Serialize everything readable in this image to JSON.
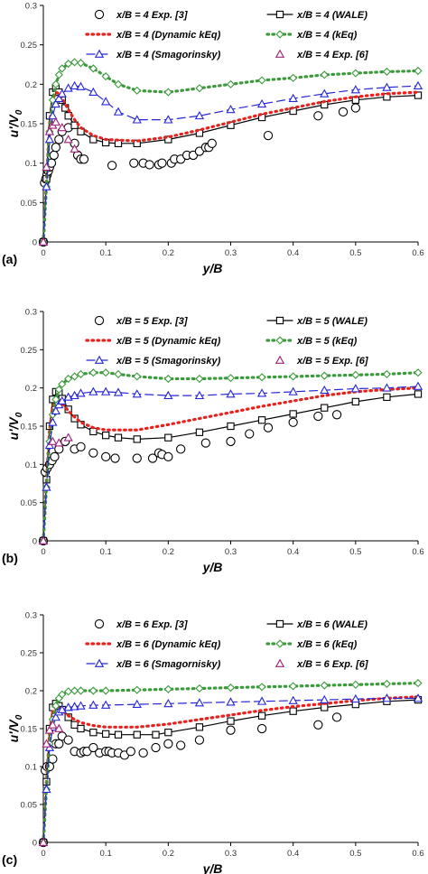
{
  "charts": [
    {
      "panel_label": "(a)",
      "xlabel": "y/B",
      "ylabel": "u'/V",
      "ylabel_sub": "0",
      "x_ticks": [
        "0",
        "0.1",
        "0.2",
        "0.3",
        "0.4",
        "0.5",
        "0.6"
      ],
      "y_ticks": [
        "0",
        "0.05",
        "0.1",
        "0.15",
        "0.2",
        "0.25",
        "0.3"
      ],
      "legend": [
        "x/B = 4 Exp.  [3]",
        "x/B = 4 (WALE)",
        "x/B = 4 (Dynamic kEq)",
        "x/B = 4 (kEq)",
        "x/B = 4 (Smagorinsky)",
        "x/B = 4 Exp. [6]"
      ]
    },
    {
      "panel_label": "(b)",
      "xlabel": "y/B",
      "ylabel": "u'/V",
      "ylabel_sub": "0",
      "x_ticks": [
        "0",
        "0.1",
        "0.2",
        "0.3",
        "0.4",
        "0.5",
        "0.6"
      ],
      "y_ticks": [
        "0",
        "0.05",
        "0.1",
        "0.15",
        "0.2",
        "0.25",
        "0.3"
      ],
      "legend": [
        "x/B = 5 Exp. [3]",
        "x/B = 5 (WALE)",
        "x/B = 5 (Dynamic kEq)",
        "x/B = 5 (kEq)",
        "x/B = 5 (Smagorinsky)",
        "x/B = 5 Exp. [6]"
      ]
    },
    {
      "panel_label": "(c)",
      "xlabel": "y/B",
      "ylabel": "u'/V",
      "ylabel_sub": "0",
      "x_ticks": [
        "0",
        "0.1",
        "0.2",
        "0.3",
        "0.4",
        "0.5",
        "0.6"
      ],
      "y_ticks": [
        "0",
        "0.05",
        "0.1",
        "0.15",
        "0.2",
        "0.25",
        "0.3"
      ],
      "legend": [
        "x/B = 6 Exp. [3]",
        "x/B = 6 (WALE)",
        "x/B = 6 (Dynamic kEq)",
        "x/B = 6 (kEq)",
        "x/B = 6 (Smagornisky)",
        "x/B = 6 Exp. [6]"
      ]
    }
  ],
  "series_style": [
    {
      "marker": "circle",
      "line": "none",
      "color": "#000000"
    },
    {
      "marker": "square",
      "line": "solid",
      "color": "#000000"
    },
    {
      "marker": "none",
      "line": "dotted",
      "color": "#e8211c"
    },
    {
      "marker": "diamond",
      "line": "dotted",
      "color": "#3c9a3c"
    },
    {
      "marker": "triangle",
      "line": "dashed",
      "color": "#2626d6"
    },
    {
      "marker": "triangle",
      "line": "none",
      "color": "#a0207a"
    }
  ],
  "chart_data": [
    {
      "type": "line",
      "xlim": [
        0,
        0.6
      ],
      "ylim": [
        0,
        0.3
      ],
      "grid": false,
      "legend_position": "top",
      "series": [
        {
          "name": "x/B = 4 Exp.  [3]",
          "x": [
            0.0,
            0.002,
            0.004,
            0.006,
            0.008,
            0.01,
            0.013,
            0.017,
            0.02,
            0.025,
            0.03,
            0.04,
            0.05,
            0.055,
            0.06,
            0.065,
            0.11,
            0.145,
            0.16,
            0.17,
            0.185,
            0.19,
            0.205,
            0.21,
            0.22,
            0.23,
            0.24,
            0.25,
            0.26,
            0.265,
            0.27,
            0.36,
            0.44,
            0.48,
            0.5
          ],
          "y": [
            0.0,
            0.075,
            0.08,
            0.085,
            0.09,
            0.095,
            0.1,
            0.11,
            0.12,
            0.13,
            0.14,
            0.145,
            0.125,
            0.11,
            0.105,
            0.105,
            0.097,
            0.1,
            0.1,
            0.098,
            0.098,
            0.1,
            0.1,
            0.105,
            0.105,
            0.11,
            0.11,
            0.115,
            0.12,
            0.12,
            0.125,
            0.135,
            0.16,
            0.165,
            0.17
          ]
        },
        {
          "name": "x/B = 4 (WALE)",
          "x": [
            0,
            0.005,
            0.01,
            0.015,
            0.02,
            0.025,
            0.03,
            0.035,
            0.04,
            0.05,
            0.06,
            0.08,
            0.1,
            0.12,
            0.15,
            0.2,
            0.25,
            0.3,
            0.35,
            0.4,
            0.45,
            0.5,
            0.55,
            0.6
          ],
          "y": [
            0,
            0.08,
            0.16,
            0.19,
            0.195,
            0.19,
            0.18,
            0.17,
            0.16,
            0.148,
            0.14,
            0.13,
            0.126,
            0.125,
            0.125,
            0.13,
            0.138,
            0.148,
            0.158,
            0.166,
            0.174,
            0.18,
            0.184,
            0.186
          ]
        },
        {
          "name": "x/B = 4 (Dynamic kEq)",
          "x": [
            0,
            0.005,
            0.01,
            0.015,
            0.02,
            0.025,
            0.03,
            0.04,
            0.05,
            0.06,
            0.08,
            0.1,
            0.15,
            0.2,
            0.25,
            0.3,
            0.35,
            0.4,
            0.45,
            0.5,
            0.55,
            0.6
          ],
          "y": [
            0,
            0.08,
            0.15,
            0.18,
            0.19,
            0.188,
            0.182,
            0.168,
            0.155,
            0.145,
            0.135,
            0.13,
            0.128,
            0.133,
            0.142,
            0.152,
            0.162,
            0.17,
            0.178,
            0.184,
            0.188,
            0.19
          ]
        },
        {
          "name": "x/B = 4 (kEq)",
          "x": [
            0,
            0.005,
            0.01,
            0.015,
            0.02,
            0.025,
            0.03,
            0.04,
            0.05,
            0.06,
            0.08,
            0.1,
            0.12,
            0.15,
            0.2,
            0.25,
            0.3,
            0.35,
            0.4,
            0.45,
            0.5,
            0.55,
            0.6
          ],
          "y": [
            0,
            0.07,
            0.14,
            0.18,
            0.2,
            0.212,
            0.22,
            0.226,
            0.228,
            0.227,
            0.22,
            0.21,
            0.2,
            0.192,
            0.19,
            0.195,
            0.2,
            0.205,
            0.208,
            0.212,
            0.214,
            0.216,
            0.217
          ]
        },
        {
          "name": "x/B = 4 (Smagorinsky)",
          "x": [
            0,
            0.005,
            0.01,
            0.015,
            0.02,
            0.025,
            0.03,
            0.04,
            0.05,
            0.06,
            0.08,
            0.1,
            0.12,
            0.15,
            0.2,
            0.25,
            0.3,
            0.35,
            0.4,
            0.45,
            0.5,
            0.55,
            0.6
          ],
          "y": [
            0,
            0.07,
            0.13,
            0.16,
            0.175,
            0.182,
            0.188,
            0.195,
            0.198,
            0.197,
            0.19,
            0.178,
            0.165,
            0.155,
            0.155,
            0.16,
            0.168,
            0.175,
            0.182,
            0.188,
            0.193,
            0.196,
            0.198
          ]
        },
        {
          "name": "x/B = 4 Exp. [6]",
          "x": [
            0.0,
            0.005,
            0.01,
            0.015,
            0.02,
            0.03,
            0.04,
            0.05
          ],
          "y": [
            0.0,
            0.095,
            0.14,
            0.148,
            0.152,
            0.145,
            0.13,
            0.118
          ]
        }
      ]
    },
    {
      "type": "line",
      "xlim": [
        0,
        0.6
      ],
      "ylim": [
        0,
        0.3
      ],
      "grid": false,
      "legend_position": "top",
      "series": [
        {
          "name": "x/B = 5 Exp. [3]",
          "x": [
            0.0,
            0.003,
            0.006,
            0.01,
            0.014,
            0.018,
            0.025,
            0.035,
            0.05,
            0.06,
            0.08,
            0.1,
            0.115,
            0.15,
            0.175,
            0.185,
            0.19,
            0.2,
            0.22,
            0.26,
            0.3,
            0.33,
            0.36,
            0.4,
            0.44,
            0.47
          ],
          "y": [
            0.0,
            0.09,
            0.095,
            0.1,
            0.105,
            0.11,
            0.12,
            0.13,
            0.12,
            0.123,
            0.115,
            0.11,
            0.108,
            0.108,
            0.108,
            0.115,
            0.113,
            0.11,
            0.12,
            0.128,
            0.13,
            0.14,
            0.148,
            0.155,
            0.163,
            0.165
          ]
        },
        {
          "name": "x/B = 5 (WALE)",
          "x": [
            0,
            0.005,
            0.01,
            0.015,
            0.02,
            0.025,
            0.03,
            0.04,
            0.05,
            0.06,
            0.08,
            0.1,
            0.12,
            0.15,
            0.2,
            0.25,
            0.3,
            0.35,
            0.4,
            0.45,
            0.5,
            0.55,
            0.6
          ],
          "y": [
            0,
            0.08,
            0.15,
            0.185,
            0.195,
            0.193,
            0.186,
            0.172,
            0.16,
            0.152,
            0.143,
            0.138,
            0.135,
            0.133,
            0.135,
            0.142,
            0.15,
            0.158,
            0.166,
            0.174,
            0.182,
            0.188,
            0.192
          ]
        },
        {
          "name": "x/B = 5 (Dynamic kEq)",
          "x": [
            0,
            0.005,
            0.01,
            0.015,
            0.02,
            0.025,
            0.03,
            0.04,
            0.05,
            0.06,
            0.08,
            0.1,
            0.15,
            0.2,
            0.25,
            0.3,
            0.35,
            0.4,
            0.45,
            0.5,
            0.55,
            0.6
          ],
          "y": [
            0,
            0.08,
            0.145,
            0.175,
            0.185,
            0.185,
            0.18,
            0.17,
            0.162,
            0.155,
            0.148,
            0.145,
            0.145,
            0.152,
            0.16,
            0.168,
            0.176,
            0.183,
            0.19,
            0.195,
            0.198,
            0.2
          ]
        },
        {
          "name": "x/B = 5 (kEq)",
          "x": [
            0,
            0.005,
            0.01,
            0.015,
            0.02,
            0.025,
            0.03,
            0.04,
            0.05,
            0.06,
            0.08,
            0.1,
            0.12,
            0.15,
            0.2,
            0.25,
            0.3,
            0.35,
            0.4,
            0.45,
            0.5,
            0.55,
            0.6
          ],
          "y": [
            0,
            0.07,
            0.13,
            0.165,
            0.185,
            0.198,
            0.205,
            0.212,
            0.215,
            0.218,
            0.22,
            0.22,
            0.218,
            0.215,
            0.212,
            0.212,
            0.213,
            0.214,
            0.215,
            0.216,
            0.217,
            0.218,
            0.22
          ]
        },
        {
          "name": "x/B = 5 (Smagorinsky)",
          "x": [
            0,
            0.005,
            0.01,
            0.015,
            0.02,
            0.025,
            0.03,
            0.04,
            0.05,
            0.06,
            0.08,
            0.1,
            0.12,
            0.15,
            0.2,
            0.25,
            0.3,
            0.35,
            0.4,
            0.45,
            0.5,
            0.55,
            0.6
          ],
          "y": [
            0,
            0.07,
            0.125,
            0.155,
            0.17,
            0.178,
            0.183,
            0.188,
            0.19,
            0.193,
            0.195,
            0.195,
            0.194,
            0.192,
            0.19,
            0.19,
            0.192,
            0.193,
            0.195,
            0.197,
            0.199,
            0.2,
            0.202
          ]
        },
        {
          "name": "x/B = 5 Exp. [6]",
          "x": [
            0.0,
            0.015,
            0.025,
            0.04
          ],
          "y": [
            0.0,
            0.13,
            0.128,
            0.135
          ]
        }
      ]
    },
    {
      "type": "line",
      "xlim": [
        0,
        0.6
      ],
      "ylim": [
        0,
        0.3
      ],
      "grid": false,
      "legend_position": "top",
      "series": [
        {
          "name": "x/B = 6 Exp. [3]",
          "x": [
            0.0,
            0.003,
            0.006,
            0.01,
            0.015,
            0.02,
            0.025,
            0.03,
            0.04,
            0.05,
            0.06,
            0.065,
            0.07,
            0.08,
            0.09,
            0.1,
            0.105,
            0.11,
            0.12,
            0.13,
            0.14,
            0.16,
            0.18,
            0.2,
            0.22,
            0.25,
            0.3,
            0.35,
            0.44,
            0.47
          ],
          "y": [
            0.0,
            0.095,
            0.1,
            0.1,
            0.11,
            0.13,
            0.13,
            0.14,
            0.135,
            0.12,
            0.118,
            0.12,
            0.12,
            0.125,
            0.118,
            0.12,
            0.12,
            0.118,
            0.118,
            0.115,
            0.12,
            0.118,
            0.125,
            0.13,
            0.128,
            0.135,
            0.148,
            0.15,
            0.155,
            0.165
          ]
        },
        {
          "name": "x/B = 6 (WALE)",
          "x": [
            0,
            0.005,
            0.01,
            0.015,
            0.02,
            0.025,
            0.03,
            0.04,
            0.05,
            0.06,
            0.08,
            0.1,
            0.12,
            0.15,
            0.18,
            0.2,
            0.25,
            0.3,
            0.35,
            0.4,
            0.45,
            0.5,
            0.55,
            0.6
          ],
          "y": [
            0,
            0.08,
            0.15,
            0.178,
            0.183,
            0.18,
            0.175,
            0.165,
            0.155,
            0.15,
            0.145,
            0.143,
            0.142,
            0.142,
            0.142,
            0.145,
            0.152,
            0.16,
            0.167,
            0.173,
            0.178,
            0.182,
            0.186,
            0.188
          ]
        },
        {
          "name": "x/B = 6 (Dynamic kEq)",
          "x": [
            0,
            0.005,
            0.01,
            0.015,
            0.02,
            0.025,
            0.03,
            0.04,
            0.05,
            0.06,
            0.08,
            0.1,
            0.15,
            0.2,
            0.25,
            0.3,
            0.35,
            0.4,
            0.45,
            0.5,
            0.55,
            0.6
          ],
          "y": [
            0,
            0.08,
            0.145,
            0.172,
            0.178,
            0.178,
            0.174,
            0.167,
            0.162,
            0.158,
            0.154,
            0.152,
            0.152,
            0.156,
            0.162,
            0.168,
            0.174,
            0.179,
            0.183,
            0.187,
            0.19,
            0.192
          ]
        },
        {
          "name": "x/B = 6 (kEq)",
          "x": [
            0,
            0.005,
            0.01,
            0.015,
            0.02,
            0.025,
            0.03,
            0.04,
            0.05,
            0.06,
            0.08,
            0.1,
            0.15,
            0.2,
            0.25,
            0.3,
            0.35,
            0.4,
            0.45,
            0.5,
            0.55,
            0.6
          ],
          "y": [
            0,
            0.07,
            0.13,
            0.162,
            0.18,
            0.19,
            0.195,
            0.199,
            0.2,
            0.2,
            0.2,
            0.2,
            0.201,
            0.202,
            0.203,
            0.204,
            0.205,
            0.206,
            0.207,
            0.208,
            0.209,
            0.21
          ]
        },
        {
          "name": "x/B = 6 (Smagornisky)",
          "x": [
            0,
            0.005,
            0.01,
            0.015,
            0.02,
            0.025,
            0.03,
            0.04,
            0.05,
            0.06,
            0.08,
            0.1,
            0.15,
            0.2,
            0.25,
            0.3,
            0.35,
            0.4,
            0.45,
            0.5,
            0.55,
            0.6
          ],
          "y": [
            0,
            0.07,
            0.125,
            0.152,
            0.165,
            0.172,
            0.175,
            0.178,
            0.179,
            0.18,
            0.181,
            0.181,
            0.182,
            0.183,
            0.184,
            0.185,
            0.186,
            0.187,
            0.188,
            0.189,
            0.19,
            0.19
          ]
        },
        {
          "name": "x/B = 6 Exp. [6]",
          "x": [
            0.0,
            0.005,
            0.01,
            0.015,
            0.025
          ],
          "y": [
            0.0,
            0.13,
            0.148,
            0.155,
            0.15
          ]
        }
      ]
    }
  ]
}
